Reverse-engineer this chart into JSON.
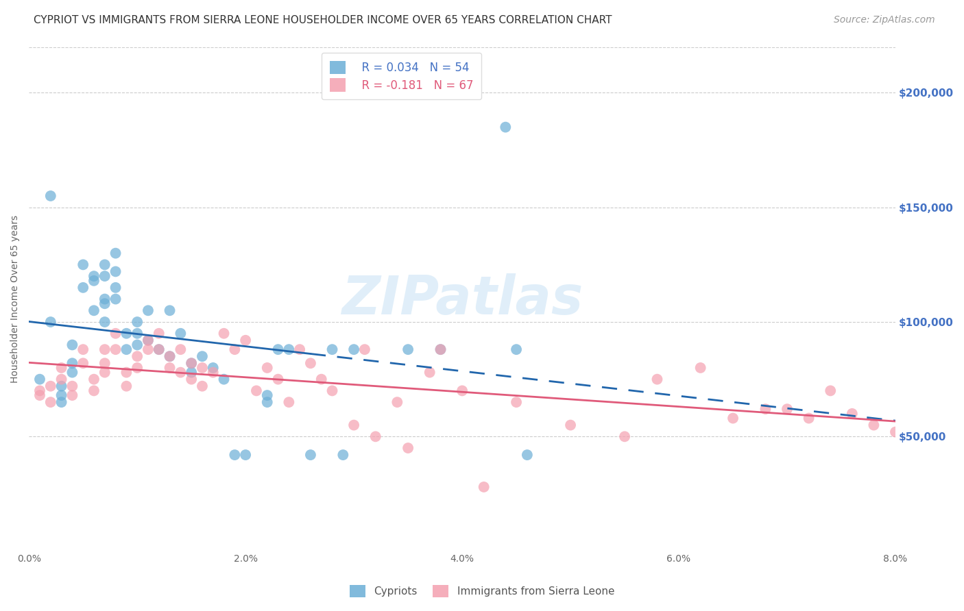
{
  "title": "CYPRIOT VS IMMIGRANTS FROM SIERRA LEONE HOUSEHOLDER INCOME OVER 65 YEARS CORRELATION CHART",
  "source": "Source: ZipAtlas.com",
  "ylabel": "Householder Income Over 65 years",
  "xlabel_ticks": [
    "0.0%",
    "2.0%",
    "4.0%",
    "6.0%",
    "8.0%"
  ],
  "xlabel_vals": [
    0.0,
    0.02,
    0.04,
    0.06,
    0.08
  ],
  "ytick_labels": [
    "$50,000",
    "$100,000",
    "$150,000",
    "$200,000"
  ],
  "ytick_vals": [
    50000,
    100000,
    150000,
    200000
  ],
  "legend1_R": "R = 0.034",
  "legend1_N": "N = 54",
  "legend2_R": "R = -0.181",
  "legend2_N": "N = 67",
  "legend1_label": "Cypriots",
  "legend2_label": "Immigrants from Sierra Leone",
  "color_blue": "#6baed6",
  "color_pink": "#f4a0b0",
  "line_blue": "#2166ac",
  "line_pink": "#e05a7a",
  "background": "#ffffff",
  "watermark": "ZIPatlas",
  "blue_scatter_x": [
    0.001,
    0.002,
    0.003,
    0.003,
    0.004,
    0.004,
    0.005,
    0.005,
    0.006,
    0.006,
    0.006,
    0.007,
    0.007,
    0.007,
    0.007,
    0.008,
    0.008,
    0.008,
    0.009,
    0.009,
    0.01,
    0.01,
    0.01,
    0.011,
    0.011,
    0.012,
    0.013,
    0.013,
    0.014,
    0.015,
    0.015,
    0.016,
    0.017,
    0.018,
    0.019,
    0.02,
    0.022,
    0.022,
    0.023,
    0.024,
    0.026,
    0.028,
    0.029,
    0.03,
    0.035,
    0.038,
    0.044,
    0.045,
    0.002,
    0.004,
    0.007,
    0.008,
    0.046,
    0.003
  ],
  "blue_scatter_y": [
    75000,
    155000,
    72000,
    68000,
    82000,
    78000,
    115000,
    125000,
    120000,
    118000,
    105000,
    125000,
    120000,
    110000,
    108000,
    130000,
    122000,
    115000,
    95000,
    88000,
    100000,
    95000,
    90000,
    105000,
    92000,
    88000,
    85000,
    105000,
    95000,
    82000,
    78000,
    85000,
    80000,
    75000,
    42000,
    42000,
    68000,
    65000,
    88000,
    88000,
    42000,
    88000,
    42000,
    88000,
    88000,
    88000,
    185000,
    88000,
    100000,
    90000,
    100000,
    110000,
    42000,
    65000
  ],
  "pink_scatter_x": [
    0.001,
    0.001,
    0.002,
    0.002,
    0.003,
    0.003,
    0.004,
    0.004,
    0.005,
    0.005,
    0.006,
    0.006,
    0.007,
    0.007,
    0.007,
    0.008,
    0.008,
    0.009,
    0.009,
    0.01,
    0.01,
    0.011,
    0.011,
    0.012,
    0.012,
    0.013,
    0.013,
    0.014,
    0.014,
    0.015,
    0.015,
    0.016,
    0.016,
    0.017,
    0.018,
    0.019,
    0.02,
    0.021,
    0.022,
    0.023,
    0.024,
    0.025,
    0.026,
    0.027,
    0.028,
    0.03,
    0.031,
    0.032,
    0.034,
    0.035,
    0.037,
    0.038,
    0.04,
    0.042,
    0.045,
    0.05,
    0.055,
    0.058,
    0.062,
    0.065,
    0.068,
    0.07,
    0.072,
    0.074,
    0.076,
    0.078,
    0.08
  ],
  "pink_scatter_y": [
    70000,
    68000,
    72000,
    65000,
    80000,
    75000,
    68000,
    72000,
    88000,
    82000,
    75000,
    70000,
    88000,
    82000,
    78000,
    95000,
    88000,
    78000,
    72000,
    85000,
    80000,
    92000,
    88000,
    95000,
    88000,
    85000,
    80000,
    88000,
    78000,
    82000,
    75000,
    80000,
    72000,
    78000,
    95000,
    88000,
    92000,
    70000,
    80000,
    75000,
    65000,
    88000,
    82000,
    75000,
    70000,
    55000,
    88000,
    50000,
    65000,
    45000,
    78000,
    88000,
    70000,
    28000,
    65000,
    55000,
    50000,
    75000,
    80000,
    58000,
    62000,
    62000,
    58000,
    70000,
    60000,
    55000,
    52000
  ],
  "xlim": [
    0.0,
    0.08
  ],
  "ylim": [
    0,
    220000
  ],
  "title_fontsize": 11,
  "source_fontsize": 10,
  "axis_label_fontsize": 10,
  "tick_fontsize": 10,
  "legend_fontsize": 12
}
